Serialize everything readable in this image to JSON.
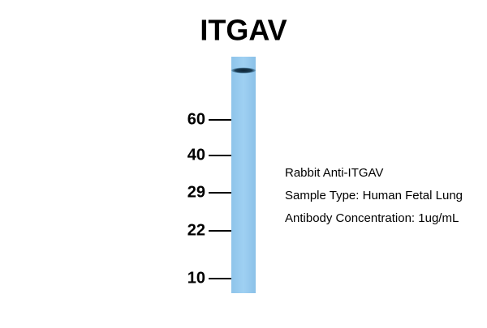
{
  "title": "ITGAV",
  "markers": [
    60,
    40,
    29,
    22,
    10
  ],
  "notes": [
    "Rabbit Anti-ITGAV",
    "Sample Type: Human Fetal Lung",
    "Antibody Concentration: 1ug/mL"
  ]
}
